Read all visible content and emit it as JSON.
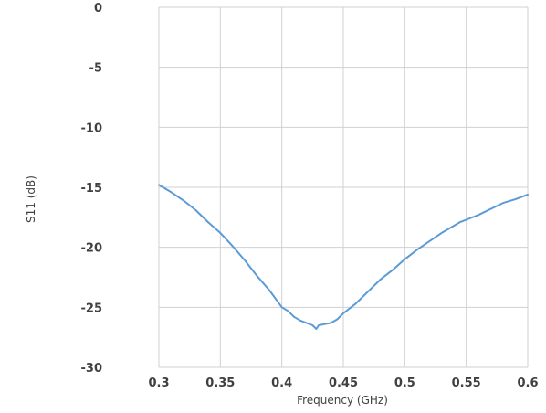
{
  "chart_data": {
    "type": "line",
    "xlabel": "Frequency (GHz)",
    "ylabel": "S11 (dB)",
    "xlim": [
      0.3,
      0.6
    ],
    "ylim": [
      -30,
      0
    ],
    "x_ticks": [
      "0.3",
      "0.35",
      "0.4",
      "0.45",
      "0.5",
      "0.55",
      "0.6"
    ],
    "y_ticks": [
      "0",
      "-5",
      "-10",
      "-15",
      "-20",
      "-25",
      "-30"
    ],
    "grid": true,
    "series_color": "#5b9bd5",
    "series": [
      {
        "x": [
          0.3,
          0.31,
          0.32,
          0.33,
          0.34,
          0.35,
          0.36,
          0.37,
          0.38,
          0.39,
          0.4,
          0.405,
          0.41,
          0.415,
          0.42,
          0.425,
          0.428,
          0.43,
          0.435,
          0.44,
          0.445,
          0.45,
          0.46,
          0.47,
          0.48,
          0.49,
          0.5,
          0.51,
          0.52,
          0.53,
          0.535,
          0.54,
          0.545,
          0.55,
          0.56,
          0.57,
          0.58,
          0.59,
          0.6
        ],
        "y": [
          -14.8,
          -15.4,
          -16.1,
          -16.9,
          -17.9,
          -18.8,
          -19.9,
          -21.1,
          -22.4,
          -23.6,
          -25.0,
          -25.3,
          -25.8,
          -26.1,
          -26.3,
          -26.5,
          -26.8,
          -26.5,
          -26.4,
          -26.3,
          -26.0,
          -25.5,
          -24.7,
          -23.7,
          -22.7,
          -21.9,
          -21.0,
          -20.2,
          -19.5,
          -18.8,
          -18.5,
          -18.2,
          -17.9,
          -17.7,
          -17.3,
          -16.8,
          -16.3,
          -16.0,
          -15.6
        ]
      }
    ]
  }
}
